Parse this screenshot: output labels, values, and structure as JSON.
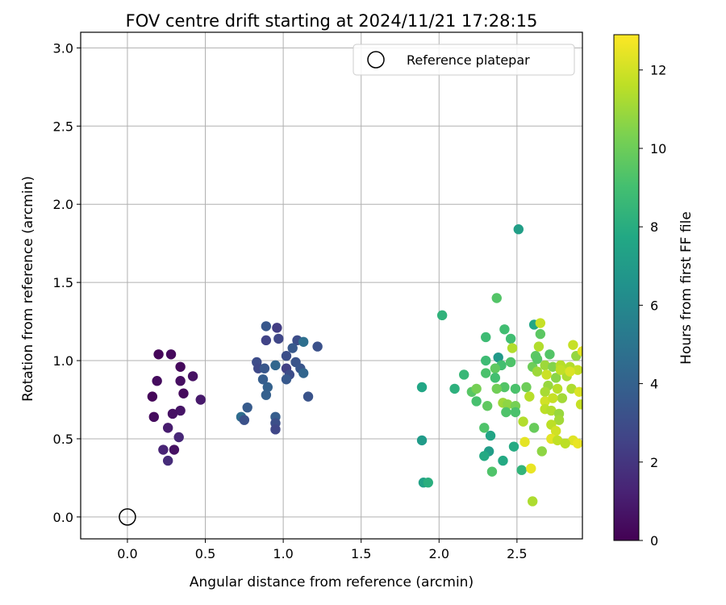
{
  "chart_data": {
    "type": "scatter",
    "title": "FOV centre drift starting at 2024/11/21 17:28:15",
    "xlabel": "Angular distance from reference (arcmin)",
    "ylabel": "Rotation from reference (arcmin)",
    "xlim": [
      -0.3,
      2.92
    ],
    "ylim": [
      -0.14,
      3.1
    ],
    "xticks": [
      0.0,
      0.5,
      1.0,
      1.5,
      2.0,
      2.5
    ],
    "xtick_labels": [
      "0.0",
      "0.5",
      "1.0",
      "1.5",
      "2.0",
      "2.5"
    ],
    "yticks": [
      0.0,
      0.5,
      1.0,
      1.5,
      2.0,
      2.5,
      3.0
    ],
    "ytick_labels": [
      "0.0",
      "0.5",
      "1.0",
      "1.5",
      "2.0",
      "2.5",
      "3.0"
    ],
    "grid": true,
    "legend": {
      "position": "top-right",
      "entries": [
        "Reference platepar"
      ]
    },
    "reference_point": {
      "x": 0.0,
      "y": 0.0,
      "label": "Reference platepar"
    },
    "colorbar": {
      "label": "Hours from first FF file",
      "range": [
        0,
        12.9
      ],
      "ticks": [
        0,
        2,
        4,
        6,
        8,
        10,
        12
      ],
      "tick_labels": [
        "0",
        "2",
        "4",
        "6",
        "8",
        "10",
        "12"
      ],
      "colormap": "viridis"
    },
    "series": [
      {
        "points": [
          [
            0.2,
            1.04,
            0.2
          ],
          [
            0.28,
            1.04,
            0.3
          ],
          [
            0.34,
            0.96,
            0.3
          ],
          [
            0.42,
            0.9,
            0.6
          ],
          [
            0.19,
            0.87,
            0.4
          ],
          [
            0.34,
            0.87,
            0.5
          ],
          [
            0.16,
            0.77,
            0.2
          ],
          [
            0.36,
            0.79,
            0.3
          ],
          [
            0.47,
            0.75,
            0.9
          ],
          [
            0.34,
            0.68,
            0.7
          ],
          [
            0.17,
            0.64,
            0.4
          ],
          [
            0.29,
            0.66,
            0.6
          ],
          [
            0.26,
            0.57,
            1.0
          ],
          [
            0.33,
            0.51,
            1.4
          ],
          [
            0.23,
            0.43,
            1.3
          ],
          [
            0.3,
            0.43,
            0.6
          ],
          [
            0.26,
            0.36,
            1.6
          ],
          [
            0.89,
            1.22,
            3.5
          ],
          [
            0.96,
            1.21,
            2.3
          ],
          [
            0.89,
            1.13,
            2.6
          ],
          [
            0.97,
            1.14,
            2.7
          ],
          [
            1.09,
            1.13,
            3.0
          ],
          [
            1.13,
            1.12,
            4.7
          ],
          [
            1.06,
            1.08,
            3.6
          ],
          [
            1.22,
            1.09,
            3.2
          ],
          [
            0.83,
            0.99,
            3.0
          ],
          [
            0.84,
            0.95,
            2.8
          ],
          [
            0.88,
            0.95,
            3.5
          ],
          [
            0.95,
            0.97,
            4.3
          ],
          [
            1.02,
            1.03,
            3.1
          ],
          [
            1.08,
            0.99,
            3.3
          ],
          [
            1.02,
            0.95,
            2.4
          ],
          [
            1.04,
            0.91,
            3.0
          ],
          [
            1.11,
            0.95,
            3.4
          ],
          [
            1.13,
            0.92,
            4.2
          ],
          [
            1.02,
            0.88,
            3.6
          ],
          [
            0.87,
            0.88,
            3.8
          ],
          [
            0.9,
            0.83,
            4.0
          ],
          [
            0.89,
            0.78,
            3.9
          ],
          [
            1.16,
            0.77,
            3.3
          ],
          [
            0.77,
            0.7,
            3.7
          ],
          [
            0.73,
            0.64,
            4.6
          ],
          [
            0.75,
            0.62,
            3.2
          ],
          [
            0.95,
            0.64,
            3.8
          ],
          [
            0.95,
            0.6,
            3.1
          ],
          [
            0.95,
            0.56,
            2.7
          ],
          [
            2.51,
            1.84,
            7.2
          ],
          [
            2.02,
            1.29,
            8.3
          ],
          [
            2.37,
            1.4,
            9.4
          ],
          [
            2.61,
            1.23,
            7.6
          ],
          [
            2.42,
            1.2,
            8.9
          ],
          [
            2.65,
            1.24,
            11.8
          ],
          [
            2.3,
            1.15,
            8.8
          ],
          [
            2.46,
            1.14,
            8.9
          ],
          [
            2.65,
            1.17,
            9.6
          ],
          [
            2.47,
            1.08,
            11.4
          ],
          [
            2.38,
            1.02,
            6.9
          ],
          [
            2.62,
            1.03,
            9.6
          ],
          [
            2.71,
            1.04,
            9.4
          ],
          [
            2.64,
            1.09,
            11.4
          ],
          [
            2.3,
            1.0,
            8.8
          ],
          [
            2.4,
            0.97,
            9.0
          ],
          [
            2.46,
            0.99,
            9.3
          ],
          [
            2.6,
            0.96,
            10.0
          ],
          [
            2.63,
            1.01,
            9.5
          ],
          [
            2.68,
            0.97,
            11.0
          ],
          [
            2.73,
            0.96,
            10.5
          ],
          [
            2.78,
            0.97,
            11.5
          ],
          [
            2.84,
            0.96,
            11.4
          ],
          [
            2.88,
            1.03,
            10.8
          ],
          [
            2.92,
            1.06,
            12.4
          ],
          [
            2.86,
            1.1,
            11.8
          ],
          [
            2.3,
            0.92,
            9.2
          ],
          [
            2.36,
            0.95,
            9.7
          ],
          [
            2.16,
            0.91,
            8.6
          ],
          [
            2.36,
            0.89,
            9.0
          ],
          [
            2.63,
            0.93,
            11.0
          ],
          [
            2.69,
            0.91,
            11.9
          ],
          [
            2.75,
            0.89,
            10.6
          ],
          [
            2.82,
            0.9,
            11.3
          ],
          [
            2.89,
            0.94,
            11.8
          ],
          [
            2.7,
            0.84,
            10.9
          ],
          [
            2.76,
            0.82,
            11.5
          ],
          [
            2.68,
            0.8,
            11.2
          ],
          [
            2.79,
            0.76,
            11.1
          ],
          [
            2.85,
            0.82,
            11.3
          ],
          [
            2.9,
            0.8,
            12.2
          ],
          [
            2.49,
            0.82,
            9.2
          ],
          [
            2.42,
            0.83,
            9.4
          ],
          [
            2.37,
            0.82,
            10.1
          ],
          [
            2.21,
            0.8,
            9.5
          ],
          [
            2.24,
            0.82,
            10.2
          ],
          [
            2.56,
            0.83,
            10.0
          ],
          [
            2.58,
            0.77,
            11.5
          ],
          [
            2.1,
            0.82,
            8.2
          ],
          [
            1.89,
            0.83,
            7.6
          ],
          [
            2.41,
            0.73,
            11.0
          ],
          [
            2.44,
            0.72,
            10.7
          ],
          [
            2.49,
            0.71,
            10.2
          ],
          [
            2.43,
            0.67,
            9.3
          ],
          [
            2.49,
            0.67,
            9.2
          ],
          [
            2.24,
            0.74,
            9.1
          ],
          [
            2.31,
            0.71,
            9.7
          ],
          [
            2.68,
            0.74,
            12.0
          ],
          [
            2.73,
            0.76,
            11.8
          ],
          [
            2.68,
            0.69,
            11.6
          ],
          [
            2.72,
            0.68,
            11.4
          ],
          [
            2.77,
            0.66,
            10.9
          ],
          [
            2.77,
            0.62,
            11.1
          ],
          [
            2.91,
            0.72,
            11.8
          ],
          [
            2.54,
            0.61,
            11.4
          ],
          [
            2.61,
            0.57,
            9.9
          ],
          [
            2.72,
            0.59,
            11.6
          ],
          [
            2.75,
            0.55,
            12.0
          ],
          [
            2.29,
            0.57,
            9.3
          ],
          [
            2.33,
            0.52,
            7.5
          ],
          [
            2.55,
            0.48,
            12.4
          ],
          [
            2.72,
            0.5,
            12.4
          ],
          [
            2.76,
            0.49,
            11.7
          ],
          [
            2.86,
            0.49,
            12.3
          ],
          [
            2.89,
            0.47,
            12.5
          ],
          [
            2.81,
            0.47,
            11.6
          ],
          [
            2.66,
            0.42,
            10.7
          ],
          [
            2.48,
            0.45,
            7.9
          ],
          [
            2.32,
            0.42,
            7.1
          ],
          [
            2.29,
            0.39,
            7.8
          ],
          [
            2.41,
            0.36,
            7.8
          ],
          [
            1.89,
            0.49,
            7.0
          ],
          [
            2.34,
            0.29,
            9.3
          ],
          [
            2.53,
            0.3,
            8.4
          ],
          [
            2.59,
            0.31,
            12.5
          ],
          [
            2.6,
            0.1,
            11.3
          ],
          [
            1.9,
            0.22,
            7.4
          ],
          [
            1.93,
            0.22,
            8.1
          ],
          [
            2.78,
            0.94,
            11.7
          ],
          [
            2.84,
            0.93,
            12.2
          ]
        ]
      }
    ]
  }
}
